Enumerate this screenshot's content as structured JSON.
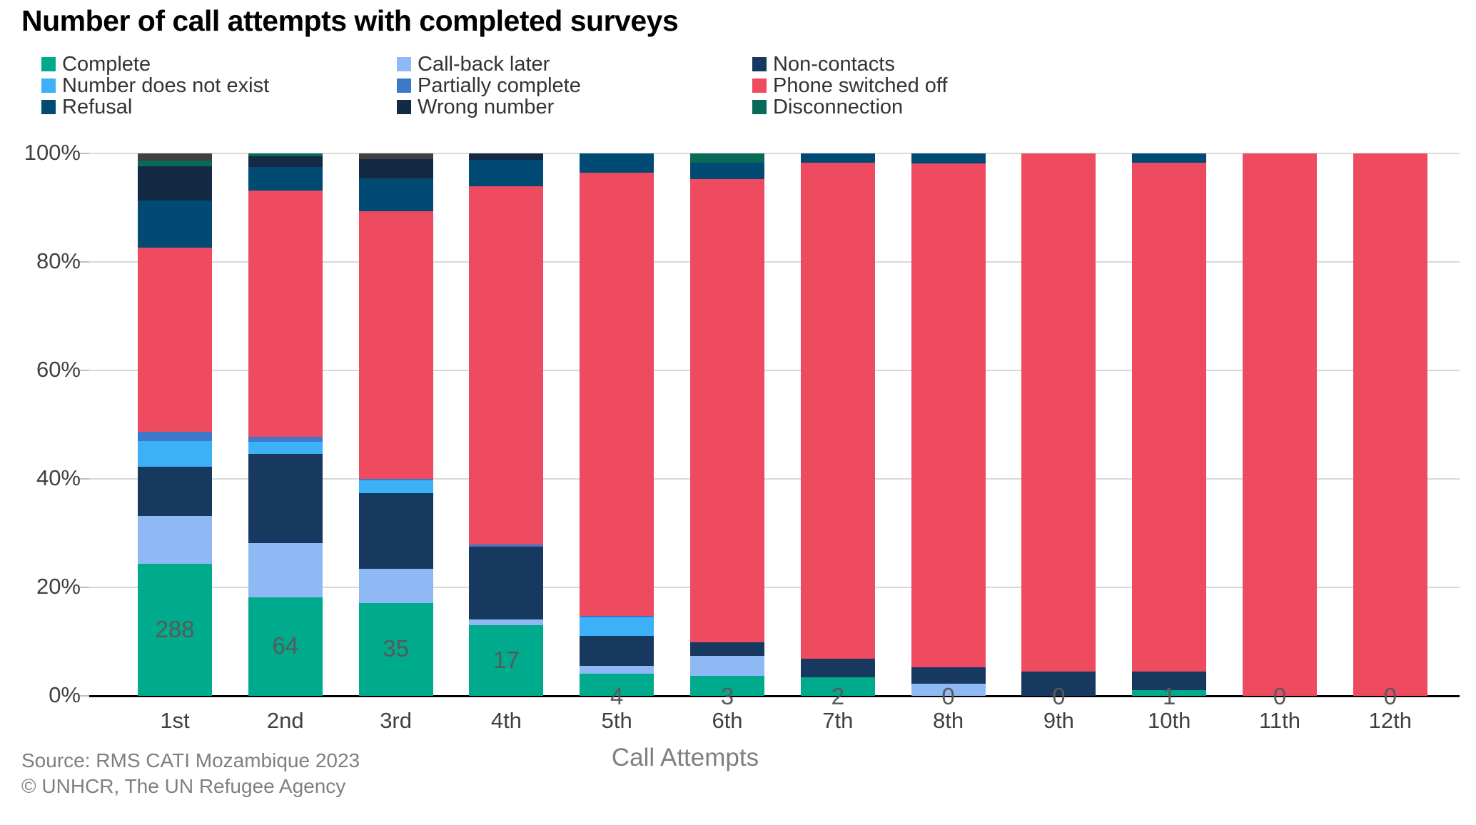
{
  "title": "Number of call attempts with completed surveys",
  "legend": {
    "items": [
      {
        "label": "Complete",
        "color": "#00ab8d"
      },
      {
        "label": "Call-back later",
        "color": "#8fb9f5"
      },
      {
        "label": "Non-contacts",
        "color": "#17395f"
      },
      {
        "label": "Number does not exist",
        "color": "#3db1f8"
      },
      {
        "label": "Partially complete",
        "color": "#3e78c9"
      },
      {
        "label": "Phone switched off",
        "color": "#ee4b61"
      },
      {
        "label": "Refusal",
        "color": "#004a73"
      },
      {
        "label": "Wrong number",
        "color": "#132a45"
      },
      {
        "label": "Disconnection",
        "color": "#086a57"
      }
    ]
  },
  "chart_data": {
    "type": "bar",
    "variant": "100-percent-stacked-column",
    "title": "Number of call attempts with completed surveys",
    "xlabel": "Call Attempts",
    "ylabel": "",
    "ylim": [
      0,
      100
    ],
    "ytick_labels": [
      "100%",
      "80%",
      "60%",
      "40%",
      "20%",
      "0%"
    ],
    "grid": true,
    "legend_position": "top",
    "categories": [
      "1st",
      "2nd",
      "3rd",
      "4th",
      "5th",
      "6th",
      "7th",
      "8th",
      "9th",
      "10th",
      "11th",
      "12th"
    ],
    "bar_labels": [
      "288",
      "64",
      "35",
      "17",
      "4",
      "3",
      "2",
      "0",
      "0",
      "1",
      "0",
      "0"
    ],
    "bar_label_note": "number of completed surveys shown near base of each column",
    "series": [
      {
        "name": "Complete",
        "color": "#00ab8d",
        "values": [
          24.3,
          18.2,
          17.1,
          13.0,
          4.1,
          3.7,
          3.4,
          0,
          0,
          1.1,
          0,
          0
        ]
      },
      {
        "name": "Call-back later",
        "color": "#8fb9f5",
        "values": [
          8.8,
          10.0,
          6.3,
          1.1,
          1.4,
          3.7,
          0,
          2.2,
          0,
          0,
          0,
          0
        ]
      },
      {
        "name": "Non-contacts",
        "color": "#17395f",
        "values": [
          9.2,
          16.4,
          14.0,
          13.4,
          5.5,
          2.5,
          3.4,
          3.1,
          4.5,
          3.4,
          0,
          0
        ]
      },
      {
        "name": "Number does not exist",
        "color": "#3db1f8",
        "values": [
          4.7,
          2.3,
          2.4,
          0,
          3.5,
          0,
          0,
          0,
          0,
          0,
          0,
          0
        ]
      },
      {
        "name": "Partially complete",
        "color": "#3e78c9",
        "values": [
          1.7,
          0.8,
          0.2,
          0.4,
          0.3,
          0,
          0,
          0,
          0,
          0,
          0,
          0
        ]
      },
      {
        "name": "Phone switched off",
        "color": "#ee4b61",
        "values": [
          33.9,
          45.5,
          49.4,
          66.0,
          81.7,
          85.4,
          91.5,
          92.8,
          95.5,
          93.8,
          100,
          100
        ]
      },
      {
        "name": "Refusal",
        "color": "#004a73",
        "values": [
          8.7,
          4.3,
          6.0,
          4.9,
          3.5,
          3.0,
          1.7,
          1.9,
          0,
          1.7,
          0,
          0
        ]
      },
      {
        "name": "Wrong number",
        "color": "#132a45",
        "values": [
          6.3,
          2.0,
          3.5,
          1.2,
          0,
          0,
          0,
          0,
          0,
          0,
          0,
          0
        ]
      },
      {
        "name": "Disconnection",
        "color": "#086a57",
        "values": [
          1.1,
          0.5,
          0,
          0,
          0,
          1.7,
          0,
          0,
          0,
          0,
          0,
          0
        ]
      },
      {
        "name": "Other (unlabelled grey segment)",
        "color": "#404040",
        "values": [
          1.3,
          0,
          1.1,
          0,
          0,
          0,
          0,
          0,
          0,
          0,
          0,
          0
        ]
      }
    ]
  },
  "footer": {
    "source_line1": "Source: RMS CATI Mozambique 2023",
    "source_line2": "© UNHCR, The UN Refugee Agency",
    "xaxis_title": "Call Attempts"
  }
}
